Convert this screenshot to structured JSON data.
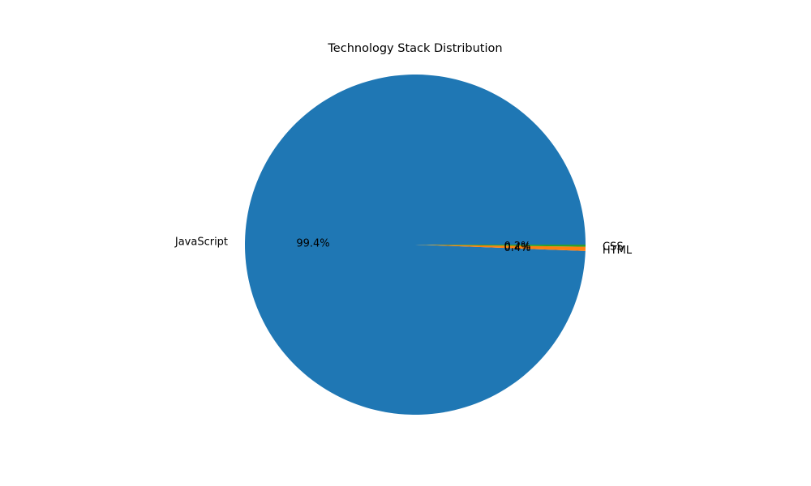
{
  "chart_data": {
    "type": "pie",
    "title": "Technology Stack Distribution",
    "categories": [
      "JavaScript",
      "HTML",
      "CSS"
    ],
    "values": [
      99.4,
      0.4,
      0.2
    ],
    "percent_labels": [
      "99.4%",
      "0.4%",
      "0.2%"
    ],
    "colors": [
      "#1f77b4",
      "#ff7f0e",
      "#2ca02c"
    ],
    "start_angle_deg": 0,
    "direction": "counterclockwise",
    "legend": "none"
  }
}
